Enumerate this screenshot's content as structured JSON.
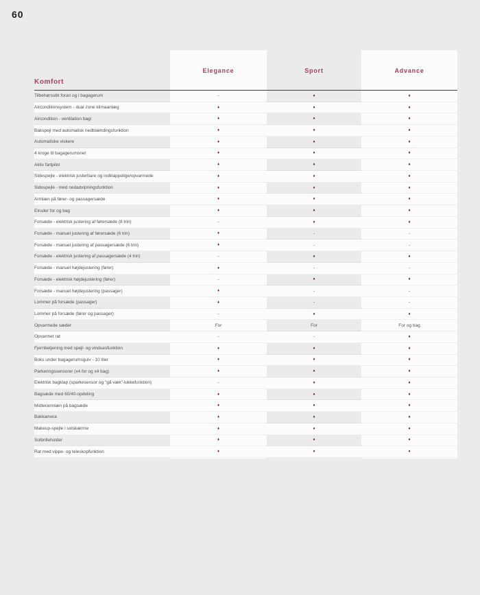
{
  "page": {
    "number": "60"
  },
  "colors": {
    "accent": "#b23a52",
    "diamond": "#6b2233",
    "page_bg": "#ebebeb"
  },
  "table": {
    "section_title": "Komfort",
    "columns": [
      "Elegance",
      "Sport",
      "Advance"
    ],
    "rows": [
      {
        "label": "Tilbehørsstik foran og i bagagerum",
        "values": [
          "-",
          "♦",
          "♦"
        ]
      },
      {
        "label": "Airconditionsystem - dual zone klimaanlæg",
        "values": [
          "♦",
          "♦",
          "♦"
        ]
      },
      {
        "label": "Aircondition - ventilation bagi",
        "values": [
          "♦",
          "♦",
          "♦"
        ]
      },
      {
        "label": "Bakspejl med automatisk nedblændingsfunktion",
        "values": [
          "♦",
          "♦",
          "♦"
        ]
      },
      {
        "label": "Automatiske viskere",
        "values": [
          "♦",
          "♦",
          "♦"
        ]
      },
      {
        "label": "4 kroge til bagagerumsnet",
        "values": [
          "♦",
          "♦",
          "♦"
        ]
      },
      {
        "label": "Aktiv fartpilot",
        "values": [
          "♦",
          "♦",
          "♦"
        ]
      },
      {
        "label": "Sidespejle - elektrisk justerbare og indklappelige/opvarmede",
        "values": [
          "♦",
          "♦",
          "♦"
        ]
      },
      {
        "label": "Sidespejle - med nedadvipningsfunktion",
        "values": [
          "♦",
          "♦",
          "♦"
        ]
      },
      {
        "label": "Armlæn på fører- og passagersæde",
        "values": [
          "♦",
          "♦",
          "♦"
        ]
      },
      {
        "label": "Elruder for og bag",
        "values": [
          "♦",
          "♦",
          "♦"
        ]
      },
      {
        "label": "Forsæde - elektrisk justering af førersæde (8 trin)",
        "values": [
          "-",
          "♦",
          "♦"
        ]
      },
      {
        "label": "Forsæde - manuel justering af førersæde (6 trin)",
        "values": [
          "♦",
          "-",
          "-"
        ]
      },
      {
        "label": "Forsæde - manuel justering af passagersæde (6 trin)",
        "values": [
          "♦",
          "-",
          "-"
        ]
      },
      {
        "label": "Forsæde - elektrisk justering af passagersæde (4 trin)",
        "values": [
          "-",
          "♦",
          "♦"
        ]
      },
      {
        "label": "Forsæde - manuel højdejustering (fører)",
        "values": [
          "♦",
          "-",
          "-"
        ]
      },
      {
        "label": "Forsæde - elektrisk højdejustering (fører)",
        "values": [
          "-",
          "♦",
          "♦"
        ]
      },
      {
        "label": "Forsæde - manuel højdejustering (passager)",
        "values": [
          "♦",
          "-",
          "-"
        ]
      },
      {
        "label": "Lommer på forsæde (passager)",
        "values": [
          "♦",
          "-",
          "-"
        ]
      },
      {
        "label": "Lommer på forsæde (fører og passager)",
        "values": [
          "-",
          "♦",
          "♦"
        ]
      },
      {
        "label": "Opvarmede sæder",
        "values": [
          "For",
          "For",
          "For og bag"
        ]
      },
      {
        "label": "Opvarmet rat",
        "values": [
          "-",
          "-",
          "♦"
        ]
      },
      {
        "label": "Fjernbetjening med spejl- og vinduesfunktion",
        "values": [
          "♦",
          "♦",
          "♦"
        ]
      },
      {
        "label": "Boks under bagagerumsgulv - 10 liter",
        "values": [
          "♦",
          "♦",
          "♦"
        ]
      },
      {
        "label": "Parkeringssensorer (x4 for og x4 bag)",
        "values": [
          "♦",
          "♦",
          "♦"
        ]
      },
      {
        "label": "Elektrisk bagklap (sparkesensor og \"gå væk\"-lukkefunktion)",
        "values": [
          "-",
          "♦",
          "♦"
        ]
      },
      {
        "label": "Bagsæde med 60/40-opdeling",
        "values": [
          "♦",
          "♦",
          "♦"
        ]
      },
      {
        "label": "Midterarmlæn på bagsæde",
        "values": [
          "♦",
          "♦",
          "♦"
        ]
      },
      {
        "label": "Bakkamera",
        "values": [
          "♦",
          "♦",
          "♦"
        ]
      },
      {
        "label": "Makeup-spejle i solskærme",
        "values": [
          "♦",
          "♦",
          "♦"
        ]
      },
      {
        "label": "Solbrilleholder",
        "values": [
          "♦",
          "♦",
          "♦"
        ]
      },
      {
        "label": "Rat med vippe- og teleskopfunktion",
        "values": [
          "♦",
          "♦",
          "♦"
        ]
      }
    ]
  }
}
